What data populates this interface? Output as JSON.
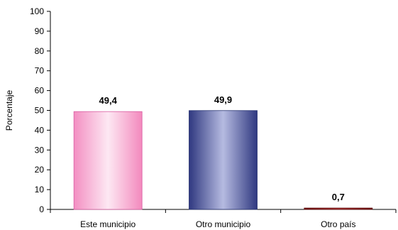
{
  "chart_data": {
    "type": "bar",
    "title": "",
    "xlabel": "",
    "ylabel": "Porcentaje",
    "categories": [
      "Este municipio",
      "Otro  municipio",
      "Otro país"
    ],
    "values": [
      49.4,
      49.9,
      0.7
    ],
    "value_labels": [
      "49,4",
      "49,9",
      "0,7"
    ],
    "ylim": [
      0,
      100
    ],
    "yticks": [
      0,
      10,
      20,
      30,
      40,
      50,
      60,
      70,
      80,
      90,
      100
    ],
    "grid": false,
    "legend": "none",
    "colors": {
      "bar_1": "#f7a8cf",
      "bar_2": "#5d67ad",
      "bar_3": "#8f1a1a",
      "axis": "#000000",
      "text": "#000000"
    }
  }
}
